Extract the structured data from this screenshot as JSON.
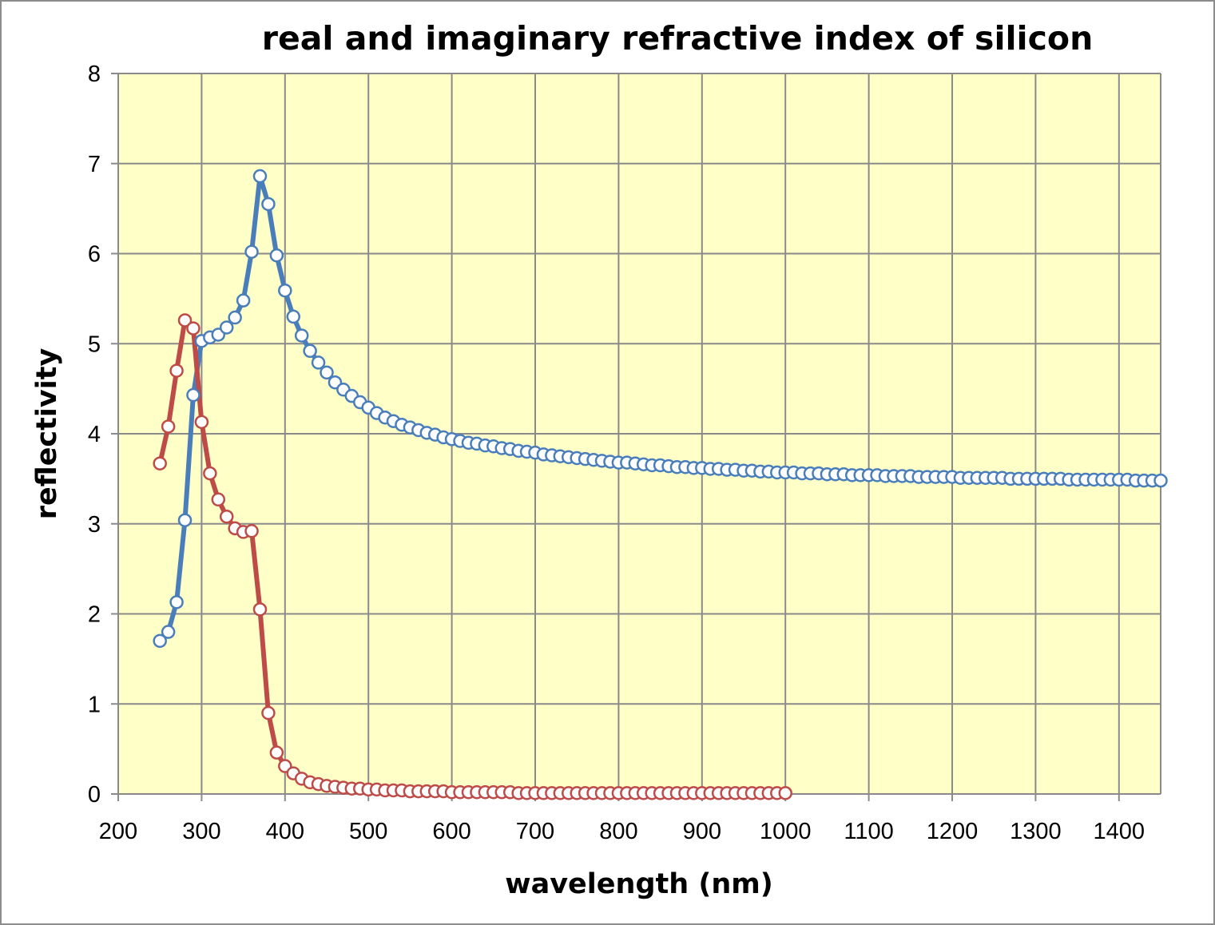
{
  "chart_data": {
    "type": "line",
    "title": "real and imaginary refractive index of silicon",
    "xlabel": "wavelength (nm)",
    "ylabel": "reflectivity",
    "xlim": [
      200,
      1450
    ],
    "ylim": [
      0,
      8
    ],
    "xticks": [
      "200",
      "300",
      "400",
      "500",
      "600",
      "700",
      "800",
      "900",
      "1000",
      "1100",
      "1200",
      "1300",
      "1400"
    ],
    "yticks": [
      "0",
      "1",
      "2",
      "3",
      "4",
      "5",
      "6",
      "7",
      "8"
    ],
    "grid": true,
    "legend": "none",
    "series": [
      {
        "name": "real",
        "color": "#4a7ebb",
        "marker": "circle-open",
        "x": [
          250,
          260,
          270,
          280,
          290,
          300,
          310,
          320,
          330,
          340,
          350,
          360,
          370,
          380,
          390,
          400,
          410,
          420,
          430,
          440,
          450,
          460,
          470,
          480,
          490,
          500,
          510,
          520,
          530,
          540,
          550,
          560,
          570,
          580,
          590,
          600,
          610,
          620,
          630,
          640,
          650,
          660,
          670,
          680,
          690,
          700,
          710,
          720,
          730,
          740,
          750,
          760,
          770,
          780,
          790,
          800,
          810,
          820,
          830,
          840,
          850,
          860,
          870,
          880,
          890,
          900,
          910,
          920,
          930,
          940,
          950,
          960,
          970,
          980,
          990,
          1000,
          1010,
          1020,
          1030,
          1040,
          1050,
          1060,
          1070,
          1080,
          1090,
          1100,
          1110,
          1120,
          1130,
          1140,
          1150,
          1160,
          1170,
          1180,
          1190,
          1200,
          1210,
          1220,
          1230,
          1240,
          1250,
          1260,
          1270,
          1280,
          1290,
          1300,
          1310,
          1320,
          1330,
          1340,
          1350,
          1360,
          1370,
          1380,
          1390,
          1400,
          1410,
          1420,
          1430,
          1440,
          1450
        ],
        "values": [
          1.7,
          1.8,
          2.13,
          3.04,
          4.43,
          5.03,
          5.07,
          5.1,
          5.18,
          5.29,
          5.48,
          6.02,
          6.86,
          6.55,
          5.98,
          5.59,
          5.3,
          5.09,
          4.92,
          4.79,
          4.68,
          4.57,
          4.49,
          4.42,
          4.35,
          4.29,
          4.23,
          4.18,
          4.14,
          4.1,
          4.07,
          4.04,
          4.01,
          3.99,
          3.96,
          3.94,
          3.92,
          3.9,
          3.89,
          3.87,
          3.86,
          3.84,
          3.83,
          3.81,
          3.8,
          3.79,
          3.77,
          3.76,
          3.75,
          3.74,
          3.73,
          3.72,
          3.71,
          3.7,
          3.69,
          3.68,
          3.68,
          3.67,
          3.66,
          3.65,
          3.65,
          3.64,
          3.63,
          3.63,
          3.62,
          3.62,
          3.61,
          3.61,
          3.6,
          3.6,
          3.59,
          3.59,
          3.58,
          3.58,
          3.57,
          3.57,
          3.57,
          3.56,
          3.56,
          3.56,
          3.55,
          3.55,
          3.55,
          3.54,
          3.54,
          3.54,
          3.54,
          3.53,
          3.53,
          3.53,
          3.53,
          3.52,
          3.52,
          3.52,
          3.52,
          3.52,
          3.51,
          3.51,
          3.51,
          3.51,
          3.51,
          3.51,
          3.5,
          3.5,
          3.5,
          3.5,
          3.5,
          3.5,
          3.5,
          3.49,
          3.49,
          3.49,
          3.49,
          3.49,
          3.49,
          3.49,
          3.49,
          3.48,
          3.48,
          3.48,
          3.48
        ]
      },
      {
        "name": "imaginary",
        "color": "#be4b48",
        "marker": "circle-open",
        "x": [
          250,
          260,
          270,
          280,
          290,
          300,
          310,
          320,
          330,
          340,
          350,
          360,
          370,
          380,
          390,
          400,
          410,
          420,
          430,
          440,
          450,
          460,
          470,
          480,
          490,
          500,
          510,
          520,
          530,
          540,
          550,
          560,
          570,
          580,
          590,
          600,
          610,
          620,
          630,
          640,
          650,
          660,
          670,
          680,
          690,
          700,
          710,
          720,
          730,
          740,
          750,
          760,
          770,
          780,
          790,
          800,
          810,
          820,
          830,
          840,
          850,
          860,
          870,
          880,
          890,
          900,
          910,
          920,
          930,
          940,
          950,
          960,
          970,
          980,
          990,
          1000
        ],
        "values": [
          3.67,
          4.08,
          4.7,
          5.26,
          5.17,
          4.13,
          3.56,
          3.27,
          3.08,
          2.95,
          2.91,
          2.92,
          2.05,
          0.9,
          0.46,
          0.31,
          0.23,
          0.17,
          0.13,
          0.11,
          0.09,
          0.08,
          0.07,
          0.06,
          0.06,
          0.05,
          0.05,
          0.04,
          0.04,
          0.04,
          0.03,
          0.03,
          0.03,
          0.03,
          0.03,
          0.02,
          0.02,
          0.02,
          0.02,
          0.02,
          0.02,
          0.02,
          0.02,
          0.01,
          0.01,
          0.01,
          0.01,
          0.01,
          0.01,
          0.01,
          0.01,
          0.01,
          0.01,
          0.01,
          0.01,
          0.01,
          0.01,
          0.01,
          0.01,
          0.01,
          0.01,
          0.01,
          0.01,
          0.01,
          0.01,
          0.01,
          0.01,
          0.01,
          0.01,
          0.01,
          0.01,
          0.01,
          0.01,
          0.01,
          0.01,
          0.01
        ]
      }
    ]
  }
}
